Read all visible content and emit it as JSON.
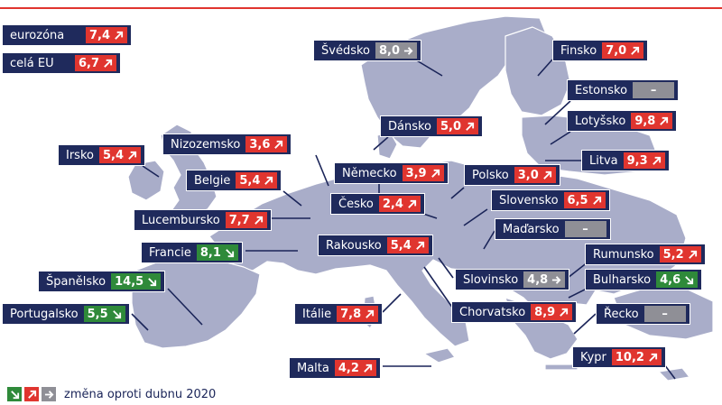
{
  "summary": [
    {
      "id": "eurozone",
      "name": "eurozóna",
      "value": "7,4",
      "trend": "up"
    },
    {
      "id": "eu",
      "name": "celá EU",
      "value": "6,7",
      "trend": "up"
    }
  ],
  "countries": [
    {
      "id": "sweden",
      "name": "Švédsko",
      "value": "8,0",
      "trend": "flat"
    },
    {
      "id": "finland",
      "name": "Finsko",
      "value": "7,0",
      "trend": "up"
    },
    {
      "id": "estonia",
      "name": "Estonsko",
      "value": "–",
      "trend": "na"
    },
    {
      "id": "latvia",
      "name": "Lotyšsko",
      "value": "9,8",
      "trend": "up"
    },
    {
      "id": "lithuania",
      "name": "Litva",
      "value": "9,3",
      "trend": "up"
    },
    {
      "id": "denmark",
      "name": "Dánsko",
      "value": "5,0",
      "trend": "up"
    },
    {
      "id": "ireland",
      "name": "Irsko",
      "value": "5,4",
      "trend": "up"
    },
    {
      "id": "netherlands",
      "name": "Nizozemsko",
      "value": "3,6",
      "trend": "up"
    },
    {
      "id": "germany",
      "name": "Německo",
      "value": "3,9",
      "trend": "up"
    },
    {
      "id": "poland",
      "name": "Polsko",
      "value": "3,0",
      "trend": "up"
    },
    {
      "id": "belgium",
      "name": "Belgie",
      "value": "5,4",
      "trend": "up"
    },
    {
      "id": "czechia",
      "name": "Česko",
      "value": "2,4",
      "trend": "up"
    },
    {
      "id": "slovakia",
      "name": "Slovensko",
      "value": "6,5",
      "trend": "up"
    },
    {
      "id": "luxembourg",
      "name": "Lucembursko",
      "value": "7,7",
      "trend": "up"
    },
    {
      "id": "hungary",
      "name": "Maďarsko",
      "value": "–",
      "trend": "na"
    },
    {
      "id": "france",
      "name": "Francie",
      "value": "8,1",
      "trend": "down"
    },
    {
      "id": "austria",
      "name": "Rakousko",
      "value": "5,4",
      "trend": "up"
    },
    {
      "id": "romania",
      "name": "Rumunsko",
      "value": "5,2",
      "trend": "up"
    },
    {
      "id": "spain",
      "name": "Španělsko",
      "value": "14,5",
      "trend": "down"
    },
    {
      "id": "slovenia",
      "name": "Slovinsko",
      "value": "4,8",
      "trend": "flat"
    },
    {
      "id": "bulgaria",
      "name": "Bulharsko",
      "value": "4,6",
      "trend": "down"
    },
    {
      "id": "portugal",
      "name": "Portugalsko",
      "value": "5,5",
      "trend": "down"
    },
    {
      "id": "italy",
      "name": "Itálie",
      "value": "7,8",
      "trend": "up"
    },
    {
      "id": "croatia",
      "name": "Chorvatsko",
      "value": "8,9",
      "trend": "up"
    },
    {
      "id": "greece",
      "name": "Řecko",
      "value": "–",
      "trend": "na"
    },
    {
      "id": "cyprus",
      "name": "Kypr",
      "value": "10,2",
      "trend": "up"
    },
    {
      "id": "malta",
      "name": "Malta",
      "value": "4,2",
      "trend": "up"
    }
  ],
  "legend": {
    "text": "změna oproti dubnu 2020",
    "icons": [
      "arrow-down-right-icon",
      "arrow-up-right-icon",
      "arrow-right-icon"
    ]
  },
  "colors": {
    "up": "#e0352f",
    "down": "#2f8a3a",
    "flat": "#8f8f96",
    "label_bg": "#1f2a5c",
    "land": "#a9adc9",
    "accent": "#e0352f"
  }
}
